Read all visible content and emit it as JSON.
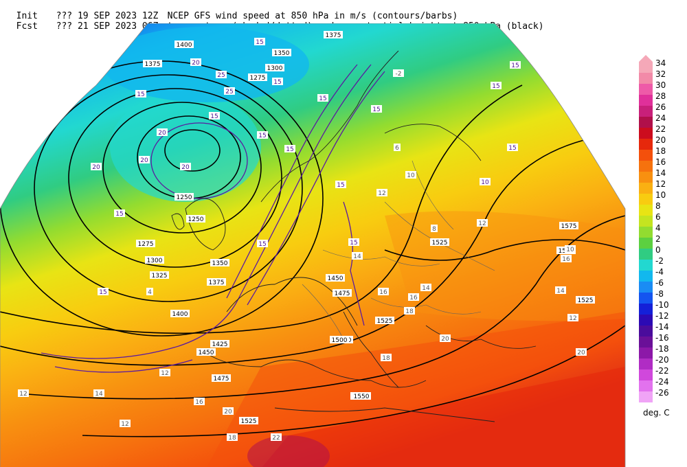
{
  "header": {
    "line1": {
      "label": "Init",
      "run": "??? 19 SEP 2023 12Z",
      "desc": "NCEP GFS wind speed at 850 hPa in m/s (contours/barbs)"
    },
    "line2": {
      "label": "Fcst",
      "run": "??? 21 SEP 2023 06Z",
      "desc": "temperature (shaded/dotted) and geopotential height at 850 hPa (black)"
    }
  },
  "legend": {
    "unit": "deg. C",
    "levels": [
      {
        "label": "34",
        "color": "#f5a8b8"
      },
      {
        "label": "32",
        "color": "#f28aa8"
      },
      {
        "label": "30",
        "color": "#ee5aa8"
      },
      {
        "label": "28",
        "color": "#e0309a"
      },
      {
        "label": "26",
        "color": "#c8207a"
      },
      {
        "label": "24",
        "color": "#b0104a"
      },
      {
        "label": "22",
        "color": "#cc0c1e"
      },
      {
        "label": "20",
        "color": "#e6280c"
      },
      {
        "label": "18",
        "color": "#f4500c"
      },
      {
        "label": "16",
        "color": "#f6720e"
      },
      {
        "label": "14",
        "color": "#f89010"
      },
      {
        "label": "12",
        "color": "#fab012"
      },
      {
        "label": "10",
        "color": "#f8cc10"
      },
      {
        "label": "8",
        "color": "#e8e414"
      },
      {
        "label": "6",
        "color": "#c4e420"
      },
      {
        "label": "4",
        "color": "#92dc30"
      },
      {
        "label": "2",
        "color": "#5cd040"
      },
      {
        "label": "0",
        "color": "#30cc82"
      },
      {
        "label": "-2",
        "color": "#22d8d0"
      },
      {
        "label": "-4",
        "color": "#12b8ee"
      },
      {
        "label": "-6",
        "color": "#1a8cf4"
      },
      {
        "label": "-8",
        "color": "#1455f0"
      },
      {
        "label": "-10",
        "color": "#1420d8"
      },
      {
        "label": "-12",
        "color": "#2c0ab4"
      },
      {
        "label": "-14",
        "color": "#4a0c9c"
      },
      {
        "label": "-16",
        "color": "#6a1098"
      },
      {
        "label": "-18",
        "color": "#8c18a8"
      },
      {
        "label": "-20",
        "color": "#b02cc4"
      },
      {
        "label": "-22",
        "color": "#d048dc"
      },
      {
        "label": "-24",
        "color": "#e272ee"
      },
      {
        "label": "-26",
        "color": "#f0a4f6"
      }
    ]
  },
  "map": {
    "projection_shape": "polar-stereographic sector",
    "height_labels": [
      "1400",
      "1375",
      "1375",
      "1350",
      "1300",
      "1275",
      "1250",
      "1250",
      "1275",
      "1300",
      "1325",
      "1350",
      "1375",
      "1400",
      "1425",
      "1450",
      "1475",
      "1500",
      "1525",
      "1550",
      "1575",
      "1550",
      "1525",
      "1450",
      "1475",
      "1525",
      "1500",
      "1550",
      "1525"
    ],
    "wind_labels": [
      "15",
      "20",
      "25",
      "25",
      "15",
      "20",
      "20",
      "15",
      "15",
      "20",
      "15",
      "15",
      "15",
      "15",
      "15",
      "20",
      "15",
      "15",
      "15",
      "15",
      "15",
      "15",
      "15",
      "10"
    ],
    "temp_labels": [
      "-2",
      "6",
      "10",
      "12",
      "14",
      "16",
      "18",
      "20",
      "22",
      "8",
      "4",
      "14",
      "16",
      "18",
      "20",
      "12",
      "14",
      "16",
      "10",
      "12",
      "12",
      "12",
      "14",
      "12",
      "16",
      "18",
      "20"
    ]
  }
}
